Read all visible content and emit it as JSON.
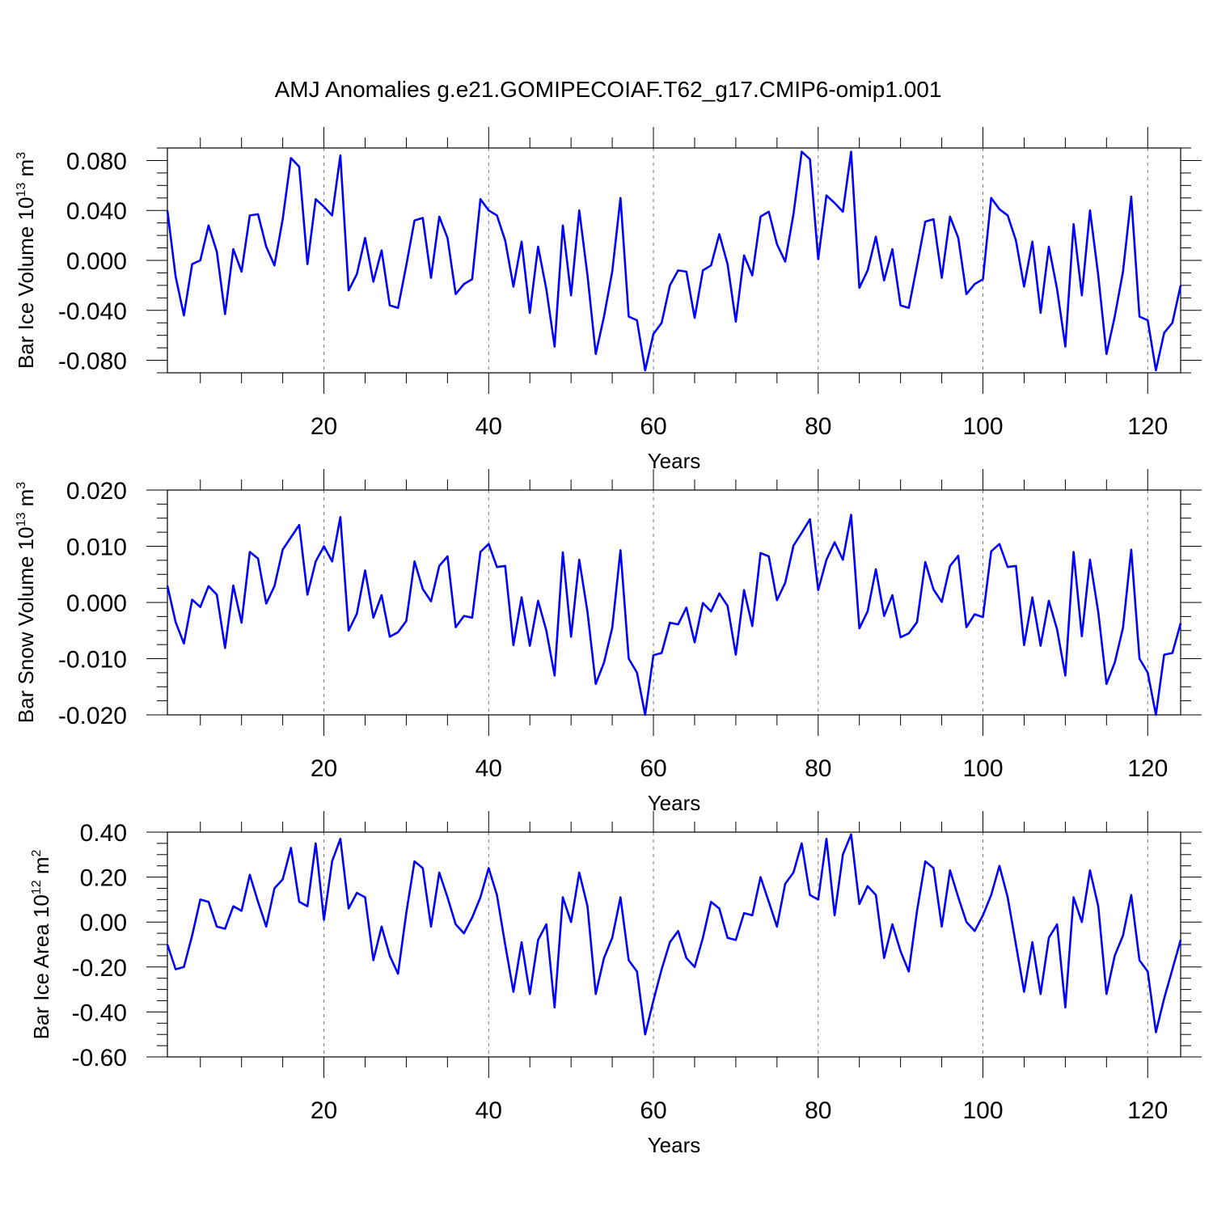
{
  "title": "AMJ Anomalies g.e21.GOMIPECOIAF.T62_g17.CMIP6-omip1.001",
  "colors": {
    "series": "#0000ff",
    "axis": "#000000",
    "grid": "#777777"
  },
  "chart_data": [
    {
      "type": "line",
      "ylabel_main": "Bar Ice Volume 10",
      "ylabel_exp": "13",
      "ylabel_unit": " m",
      "ylabel_unit_exp": "3",
      "xlabel": "Years",
      "xlim": [
        1,
        124
      ],
      "ylim": [
        -0.09,
        0.09
      ],
      "xticks": [
        20,
        40,
        60,
        80,
        100,
        120
      ],
      "xtick_labels": [
        "20",
        "40",
        "60",
        "80",
        "100",
        "120"
      ],
      "yticks": [
        -0.08,
        -0.04,
        0.0,
        0.04,
        0.08
      ],
      "ytick_labels": [
        "-0.080",
        "-0.040",
        "0.000",
        "0.040",
        "0.080"
      ],
      "grid_x": [
        20,
        40,
        60,
        80,
        100,
        120
      ],
      "series": [
        {
          "name": "Bar Ice Volume",
          "values": [
            0.04,
            -0.013,
            -0.044,
            -0.003,
            0.0,
            0.028,
            0.007,
            -0.043,
            0.009,
            -0.009,
            0.036,
            0.037,
            0.011,
            -0.004,
            0.033,
            0.082,
            0.075,
            -0.003,
            0.049,
            0.043,
            0.036,
            0.084,
            -0.024,
            -0.011,
            0.018,
            -0.017,
            0.008,
            -0.036,
            -0.038,
            -0.004,
            0.032,
            0.034,
            -0.014,
            0.035,
            0.018,
            -0.027,
            -0.019,
            -0.015,
            0.049,
            0.04,
            0.036,
            0.016,
            -0.021,
            0.015,
            -0.042,
            0.011,
            -0.023,
            -0.069,
            0.028,
            -0.028,
            0.04,
            -0.012,
            -0.075,
            -0.045,
            -0.009,
            0.05,
            -0.045,
            -0.048,
            -0.088,
            -0.059,
            -0.05,
            -0.02,
            -0.008,
            -0.009,
            -0.046,
            -0.008,
            -0.004,
            0.021,
            -0.003,
            -0.049,
            0.004,
            -0.012,
            0.035,
            0.039,
            0.013,
            -0.001,
            0.037,
            0.087,
            0.081,
            0.001,
            0.052,
            0.046,
            0.039,
            0.087,
            -0.022,
            -0.008,
            0.019,
            -0.016,
            0.009,
            -0.036,
            -0.038,
            -0.004,
            0.031,
            0.033,
            -0.014,
            0.035,
            0.018,
            -0.027,
            -0.019,
            -0.015,
            0.05,
            0.041,
            0.036,
            0.016,
            -0.021,
            0.015,
            -0.042,
            0.011,
            -0.023,
            -0.069,
            0.029,
            -0.028,
            0.04,
            -0.012,
            -0.075,
            -0.045,
            -0.009,
            0.051,
            -0.045,
            -0.048,
            -0.088,
            -0.058,
            -0.05,
            -0.02
          ]
        }
      ]
    },
    {
      "type": "line",
      "ylabel_main": "Bar Snow Volume 10",
      "ylabel_exp": "13",
      "ylabel_unit": " m",
      "ylabel_unit_exp": "3",
      "xlabel": "Years",
      "xlim": [
        1,
        124
      ],
      "ylim": [
        -0.02,
        0.02
      ],
      "xticks": [
        20,
        40,
        60,
        80,
        100,
        120
      ],
      "xtick_labels": [
        "20",
        "40",
        "60",
        "80",
        "100",
        "120"
      ],
      "yticks": [
        -0.02,
        -0.01,
        0.0,
        0.01,
        0.02
      ],
      "ytick_labels": [
        "-0.020",
        "-0.010",
        "0.000",
        "0.010",
        "0.020"
      ],
      "grid_x": [
        20,
        40,
        60,
        80,
        100,
        120
      ],
      "series": [
        {
          "name": "Bar Snow Volume",
          "values": [
            0.003,
            -0.0035,
            -0.0073,
            0.0005,
            -0.0008,
            0.0029,
            0.0014,
            -0.0081,
            0.003,
            -0.0036,
            0.009,
            0.0078,
            -0.0002,
            0.0029,
            0.0094,
            0.0116,
            0.0138,
            0.0014,
            0.0073,
            0.01,
            0.0073,
            0.0152,
            -0.005,
            -0.002,
            0.0057,
            -0.0027,
            0.0013,
            -0.0061,
            -0.0053,
            -0.0033,
            0.0073,
            0.0024,
            0.0002,
            0.0065,
            0.0082,
            -0.0044,
            -0.0024,
            -0.0027,
            0.009,
            0.0104,
            0.0063,
            0.0065,
            -0.0076,
            0.0009,
            -0.0077,
            0.0003,
            -0.005,
            -0.013,
            0.0089,
            -0.0061,
            0.0076,
            -0.0017,
            -0.0145,
            -0.0107,
            -0.0045,
            0.0093,
            -0.01,
            -0.0125,
            -0.02,
            -0.0094,
            -0.009,
            -0.0036,
            -0.0039,
            -0.0009,
            -0.0071,
            -0.0001,
            -0.0016,
            0.0016,
            -0.0006,
            -0.0093,
            0.0022,
            -0.0042,
            0.0088,
            0.0082,
            0.0004,
            0.0035,
            0.0101,
            0.0124,
            0.0148,
            0.0022,
            0.0076,
            0.0107,
            0.0076,
            0.0156,
            -0.0046,
            -0.0016,
            0.0059,
            -0.0024,
            0.0013,
            -0.0062,
            -0.0055,
            -0.0035,
            0.0072,
            0.0023,
            0.0001,
            0.0065,
            0.0083,
            -0.0044,
            -0.0021,
            -0.0026,
            0.0091,
            0.0104,
            0.0063,
            0.0065,
            -0.0076,
            0.0009,
            -0.0077,
            0.0003,
            -0.0048,
            -0.013,
            0.009,
            -0.006,
            0.0076,
            -0.0017,
            -0.0145,
            -0.0107,
            -0.0045,
            0.0094,
            -0.01,
            -0.0125,
            -0.02,
            -0.0093,
            -0.009,
            -0.0037
          ]
        }
      ]
    },
    {
      "type": "line",
      "ylabel_main": "Bar Ice Area 10",
      "ylabel_exp": "12",
      "ylabel_unit": " m",
      "ylabel_unit_exp": "2",
      "xlabel": "Years",
      "xlim": [
        1,
        124
      ],
      "ylim": [
        -0.6,
        0.4
      ],
      "xticks": [
        20,
        40,
        60,
        80,
        100,
        120
      ],
      "xtick_labels": [
        "20",
        "40",
        "60",
        "80",
        "100",
        "120"
      ],
      "yticks": [
        -0.6,
        -0.4,
        -0.2,
        0.0,
        0.2,
        0.4
      ],
      "ytick_labels": [
        "-0.60",
        "-0.40",
        "-0.20",
        "0.00",
        "0.20",
        "0.40"
      ],
      "grid_x": [
        20,
        40,
        60,
        80,
        100,
        120
      ],
      "series": [
        {
          "name": "Bar Ice Area",
          "values": [
            -0.1,
            -0.21,
            -0.2,
            -0.06,
            0.1,
            0.09,
            -0.02,
            -0.03,
            0.07,
            0.05,
            0.21,
            0.09,
            -0.02,
            0.15,
            0.19,
            0.33,
            0.09,
            0.07,
            0.35,
            0.01,
            0.27,
            0.37,
            0.06,
            0.13,
            0.11,
            -0.17,
            -0.02,
            -0.15,
            -0.23,
            0.04,
            0.27,
            0.24,
            -0.02,
            0.22,
            0.11,
            -0.01,
            -0.05,
            0.02,
            0.11,
            0.24,
            0.12,
            -0.1,
            -0.31,
            -0.09,
            -0.32,
            -0.08,
            -0.01,
            -0.38,
            0.11,
            0.0,
            0.22,
            0.07,
            -0.32,
            -0.16,
            -0.07,
            0.11,
            -0.17,
            -0.22,
            -0.5,
            -0.35,
            -0.21,
            -0.09,
            -0.04,
            -0.16,
            -0.2,
            -0.07,
            0.09,
            0.06,
            -0.07,
            -0.08,
            0.04,
            0.03,
            0.2,
            0.09,
            -0.02,
            0.17,
            0.22,
            0.35,
            0.12,
            0.1,
            0.37,
            0.03,
            0.3,
            0.39,
            0.08,
            0.16,
            0.12,
            -0.16,
            -0.01,
            -0.13,
            -0.22,
            0.05,
            0.27,
            0.24,
            -0.02,
            0.23,
            0.11,
            0.0,
            -0.04,
            0.03,
            0.12,
            0.25,
            0.11,
            -0.1,
            -0.31,
            -0.09,
            -0.32,
            -0.07,
            -0.01,
            -0.38,
            0.11,
            0.0,
            0.23,
            0.07,
            -0.32,
            -0.15,
            -0.06,
            0.12,
            -0.17,
            -0.22,
            -0.49,
            -0.34,
            -0.21,
            -0.08
          ]
        }
      ]
    }
  ]
}
